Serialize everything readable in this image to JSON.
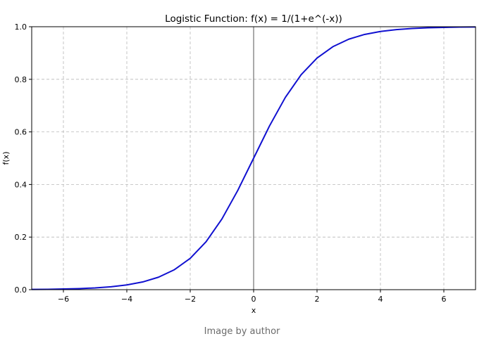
{
  "chart_data": {
    "type": "line",
    "title": "Logistic Function: f(x) = 1/(1+e^(-x))",
    "xlabel": "x",
    "ylabel": "f(x)",
    "xlim": [
      -7,
      7
    ],
    "ylim": [
      0,
      1
    ],
    "x_ticks": [
      -6,
      -4,
      -2,
      0,
      2,
      4,
      6
    ],
    "x_tick_labels": [
      "−6",
      "−4",
      "−2",
      "0",
      "2",
      "4",
      "6"
    ],
    "y_ticks": [
      0,
      0.2,
      0.4,
      0.6,
      0.8,
      1.0
    ],
    "y_tick_labels": [
      "0.0",
      "0.2",
      "0.4",
      "0.6",
      "0.8",
      "1.0"
    ],
    "grid": true,
    "vertical_line_at_x": 0,
    "series": [
      {
        "color": "#1010d0",
        "x": [
          -7,
          -6.5,
          -6,
          -5.5,
          -5,
          -4.5,
          -4,
          -3.5,
          -3,
          -2.5,
          -2,
          -1.5,
          -1,
          -0.5,
          0,
          0.5,
          1,
          1.5,
          2,
          2.5,
          3,
          3.5,
          4,
          4.5,
          5,
          5.5,
          6,
          6.5,
          7
        ],
        "y": [
          0.0009,
          0.0015,
          0.0025,
          0.0041,
          0.0067,
          0.011,
          0.018,
          0.0293,
          0.0474,
          0.0759,
          0.1192,
          0.1824,
          0.2689,
          0.3775,
          0.5,
          0.6225,
          0.7311,
          0.8176,
          0.8808,
          0.9241,
          0.9526,
          0.9707,
          0.982,
          0.989,
          0.9933,
          0.9959,
          0.9975,
          0.9985,
          0.9991
        ]
      }
    ]
  },
  "caption": "Image by author"
}
